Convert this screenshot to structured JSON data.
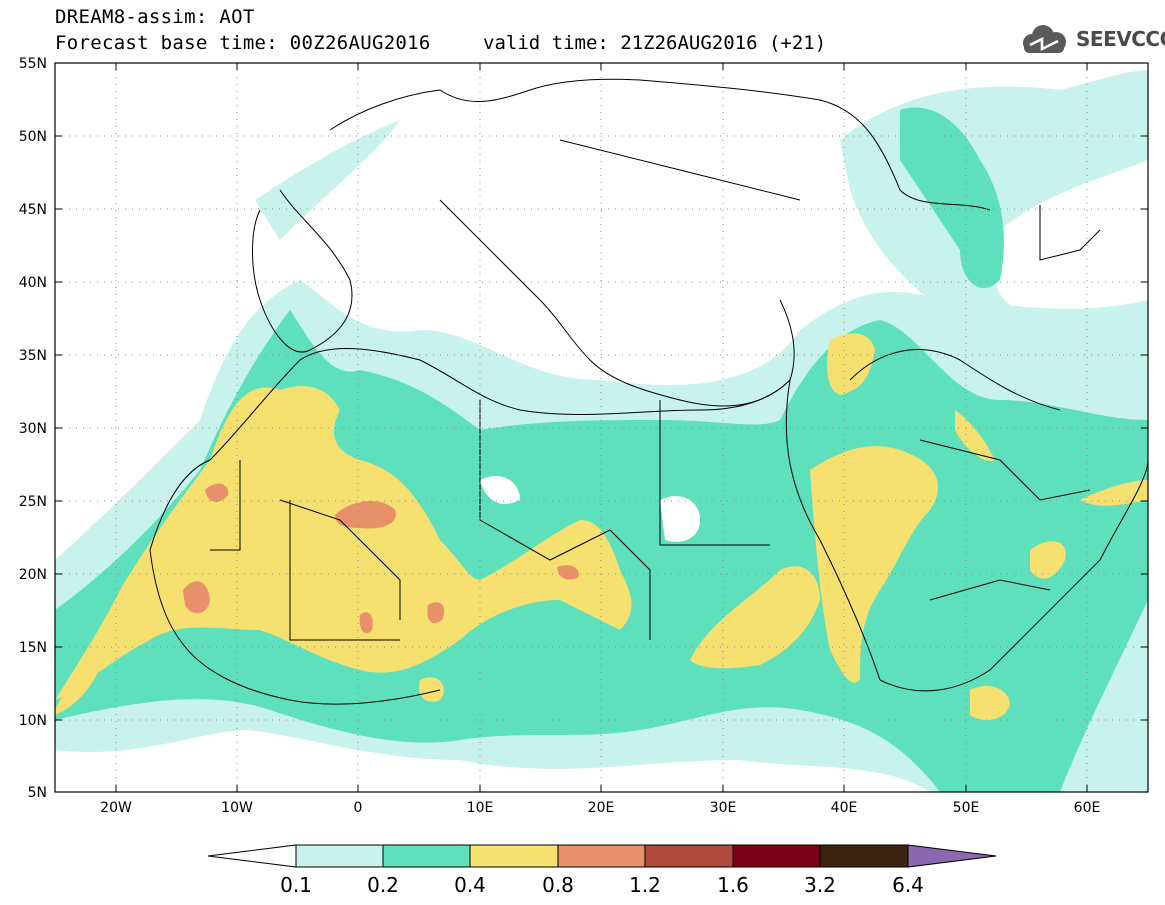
{
  "header": {
    "title": "DREAM8-assim: AOT",
    "base_time": "Forecast base time: 00Z26AUG2016",
    "valid_time": "valid time: 21Z26AUG2016 (+21)",
    "logo_text": "SEEVCCC",
    "logo_icon": "cloud-icon"
  },
  "map": {
    "lon_range": [
      -25,
      65
    ],
    "lat_range": [
      5,
      55
    ],
    "lat_labels": [
      "55N",
      "50N",
      "45N",
      "40N",
      "35N",
      "30N",
      "25N",
      "20N",
      "15N",
      "10N",
      "5N"
    ],
    "lon_labels": [
      "20W",
      "10W",
      "0",
      "10E",
      "20E",
      "30E",
      "40E",
      "50E",
      "60E"
    ],
    "gridlines": "dotted",
    "field": "aerosol optical thickness"
  },
  "legend": {
    "labels": [
      "0.1",
      "0.2",
      "0.4",
      "0.8",
      "1.2",
      "1.6",
      "3.2",
      "6.4"
    ],
    "colors": [
      "#ffffff",
      "#c8f2ec",
      "#5ee0bc",
      "#f5e070",
      "#e8906a",
      "#b04a3c",
      "#7a0018",
      "#3a2210",
      "#8b68b0"
    ]
  }
}
